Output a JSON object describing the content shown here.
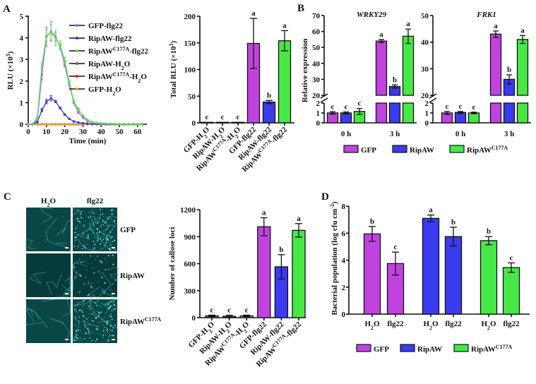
{
  "panels": {
    "A": "A",
    "B": "B",
    "C": "C",
    "D": "D"
  },
  "colors": {
    "GFP": "#c043e0",
    "RipAW": "#3b3bf0",
    "RipAW_C177A": "#46e846",
    "axis": "#111111"
  },
  "chart_data": [
    {
      "id": "A-kinetics",
      "type": "line",
      "xlabel": "Time (min)",
      "ylabel": "RLU (×10^{3})",
      "xlim": [
        0,
        65
      ],
      "ylim": [
        0,
        5
      ],
      "xticks": [
        0,
        10,
        20,
        30,
        40,
        50,
        60
      ],
      "yticks": [
        0,
        1,
        2,
        3,
        4,
        5
      ],
      "legend": "top-right",
      "x": [
        0,
        2.5,
        5,
        7.5,
        10,
        12.5,
        15,
        17.5,
        20,
        22.5,
        25,
        27.5,
        30,
        32.5,
        35,
        37.5,
        40,
        42.5,
        45,
        47.5,
        50,
        52.5,
        55,
        57.5,
        60,
        62.5
      ],
      "series": [
        {
          "name": "GFP-flg22",
          "color": "#b562d8",
          "values": [
            0,
            0.02,
            0.2,
            2.3,
            4.05,
            4.3,
            4.05,
            3.6,
            2.75,
            1.85,
            1.0,
            0.55,
            0.3,
            0.15,
            0.08,
            0.05,
            0.03,
            0.02,
            0.02,
            0.01,
            0.01,
            0.01,
            0,
            0,
            0,
            0
          ],
          "err": [
            0,
            0,
            0.05,
            0.25,
            0.45,
            0.45,
            0.2,
            0.1,
            0.1,
            0.1,
            0.05,
            0.05,
            0,
            0,
            0,
            0,
            0,
            0,
            0,
            0,
            0,
            0,
            0,
            0,
            0,
            0
          ]
        },
        {
          "name": "RipAW-flg22",
          "color": "#3535e0",
          "values": [
            0,
            0.01,
            0.1,
            0.65,
            1.05,
            1.2,
            1.05,
            0.75,
            0.45,
            0.25,
            0.13,
            0.08,
            0.05,
            0.03,
            0.02,
            0.01,
            0.01,
            0,
            0,
            0,
            0,
            0,
            0,
            0,
            0,
            0
          ],
          "err": [
            0,
            0,
            0.02,
            0.08,
            0.1,
            0.12,
            0.05,
            0.04,
            0.03,
            0,
            0,
            0,
            0,
            0,
            0,
            0,
            0,
            0,
            0,
            0,
            0,
            0,
            0,
            0,
            0,
            0
          ]
        },
        {
          "name": "RipAW^{C177A}-flg22",
          "color": "#4fe04f",
          "values": [
            0,
            0.02,
            0.3,
            2.7,
            4.1,
            4.25,
            4.0,
            3.65,
            2.95,
            1.95,
            1.05,
            0.7,
            0.4,
            0.2,
            0.1,
            0.06,
            0.04,
            0.03,
            0.02,
            0.02,
            0.01,
            0.01,
            0.01,
            0,
            0,
            0
          ],
          "err": [
            0,
            0,
            0.05,
            0.15,
            0.3,
            0.35,
            0.35,
            0.2,
            0.15,
            0.1,
            0.08,
            0.05,
            0,
            0,
            0,
            0,
            0,
            0,
            0,
            0,
            0,
            0,
            0,
            0,
            0,
            0
          ]
        },
        {
          "name": "RipAW-H_{2}O",
          "color": "#a0522d",
          "values": [
            0,
            0,
            0,
            0,
            0,
            0,
            0,
            0,
            0,
            0,
            0,
            0,
            0,
            0,
            0,
            0,
            0,
            0,
            0,
            0,
            0,
            0,
            0,
            0,
            0,
            0
          ],
          "err": []
        },
        {
          "name": "RipAW^{C177A}-H_{2}O",
          "color": "#e02020",
          "values": [
            0,
            0,
            0,
            0,
            0,
            0,
            0,
            0,
            0,
            0,
            0,
            0,
            0,
            0,
            0,
            0,
            0,
            0,
            0,
            0,
            0,
            0,
            0,
            0,
            0,
            0
          ],
          "err": []
        },
        {
          "name": "GFP-H_{2}O",
          "color": "#ff9a26",
          "values": [
            0,
            0,
            0,
            0,
            0,
            0,
            0,
            0,
            0,
            0,
            0,
            0,
            0,
            0,
            0,
            0,
            0,
            0,
            0,
            0,
            0,
            0,
            0,
            0,
            0,
            0
          ],
          "err": []
        }
      ]
    },
    {
      "id": "A-total",
      "type": "bar",
      "ylabel": "Total RLU (×10^{3})",
      "ylim": [
        0,
        200
      ],
      "yticks": [
        0,
        50,
        100,
        150,
        200
      ],
      "categories": [
        "GFP-H_{2}O",
        "RipAW-H_{2}O",
        "RipAW^{C177A}-H_{2}O",
        "GFP-flg22",
        "RipAW-flg22",
        "RipAW^{C177A}-flg22"
      ],
      "values": [
        1,
        1,
        1,
        149,
        39,
        154
      ],
      "err": [
        0,
        0,
        0,
        47,
        3,
        19
      ],
      "letters": [
        "c",
        "c",
        "c",
        "a",
        "b",
        "a"
      ],
      "colors": [
        "#c043e0",
        "#3b3bf0",
        "#46e846",
        "#c043e0",
        "#3b3bf0",
        "#46e846"
      ]
    },
    {
      "id": "B-WRKY29",
      "type": "bar",
      "title": "WRKY29",
      "ylabel": "Relative expression",
      "groups": [
        "0 h",
        "3 h"
      ],
      "axis_break": [
        2,
        20
      ],
      "ylim": [
        0,
        70
      ],
      "yticks_lower": [
        0,
        1,
        2
      ],
      "yticks_upper": [
        20,
        30,
        40,
        50,
        60,
        70
      ],
      "series": [
        {
          "name": "GFP",
          "values": [
            1.0,
            54
          ],
          "err": [
            0.12,
            1
          ],
          "letters": [
            "c",
            "a"
          ]
        },
        {
          "name": "RipAW",
          "values": [
            1.0,
            25.5
          ],
          "err": [
            0.1,
            1
          ],
          "letters": [
            "c",
            "b"
          ]
        },
        {
          "name": "RipAW^{C177A}",
          "values": [
            1.15,
            57
          ],
          "err": [
            0.3,
            4.5
          ],
          "letters": [
            "c",
            "a"
          ]
        }
      ]
    },
    {
      "id": "B-FRK1",
      "type": "bar",
      "title": "FRK1",
      "groups": [
        "0 h",
        "3 h"
      ],
      "axis_break": [
        2,
        20
      ],
      "ylim": [
        0,
        50
      ],
      "yticks_lower": [
        0,
        1,
        2
      ],
      "yticks_upper": [
        20,
        30,
        40,
        50
      ],
      "series": [
        {
          "name": "GFP",
          "values": [
            1.0,
            43
          ],
          "err": [
            0.15,
            1.2
          ],
          "letters": [
            "c",
            "a"
          ]
        },
        {
          "name": "RipAW",
          "values": [
            1.05,
            26
          ],
          "err": [
            0.1,
            1.7
          ],
          "letters": [
            "c",
            "b"
          ]
        },
        {
          "name": "RipAW^{C177A}",
          "values": [
            1.0,
            41
          ],
          "err": [
            0.08,
            1.5
          ],
          "letters": [
            "c",
            "a"
          ]
        }
      ]
    },
    {
      "id": "C-callose",
      "type": "bar",
      "ylabel": "Number of callose loci",
      "ylim": [
        0,
        1200
      ],
      "yticks": [
        0,
        300,
        600,
        900,
        1200
      ],
      "categories": [
        "GFP-H_{2}O",
        "RipAW-H_{2}O",
        "RipAW^{C177A}-H_{2}O",
        "GFP-flg22",
        "RipAW-flg22",
        "RipAW^{C177A}-flg22"
      ],
      "values": [
        20,
        15,
        20,
        1010,
        565,
        970
      ],
      "err": [
        8,
        12,
        8,
        100,
        135,
        75
      ],
      "letters": [
        "c",
        "c",
        "c",
        "a",
        "b",
        "a"
      ],
      "colors": [
        "#c043e0",
        "#3b3bf0",
        "#46e846",
        "#c043e0",
        "#3b3bf0",
        "#46e846"
      ]
    },
    {
      "id": "D-bacterial",
      "type": "bar",
      "ylabel": "Bacterial population (log cfu cm^{-2})",
      "ylim": [
        0,
        8
      ],
      "yticks": [
        0,
        2,
        4,
        6,
        8
      ],
      "categories": [
        "H_{2}O",
        "flg22"
      ],
      "series": [
        {
          "name": "GFP",
          "values": [
            5.95,
            3.75
          ],
          "err": [
            0.55,
            0.85
          ],
          "letters": [
            "b",
            "c"
          ]
        },
        {
          "name": "RipAW",
          "values": [
            7.1,
            5.75
          ],
          "err": [
            0.25,
            0.7
          ],
          "letters": [
            "a",
            "b"
          ]
        },
        {
          "name": "RipAW^{C177A}",
          "values": [
            5.45,
            3.45
          ],
          "err": [
            0.3,
            0.35
          ],
          "letters": [
            "b",
            "c"
          ]
        }
      ]
    }
  ],
  "legend_groups": [
    "GFP",
    "RipAW",
    "RipAW^{C177A}"
  ],
  "panelC": {
    "columns": [
      "H_{2}O",
      "flg22"
    ],
    "rows": [
      "GFP",
      "RipAW",
      "RipAW^{C177A}"
    ],
    "image_description_colors": {
      "background": "#0a4646",
      "vein": "#2fb0b0",
      "callose": "#6ff0f0"
    }
  }
}
